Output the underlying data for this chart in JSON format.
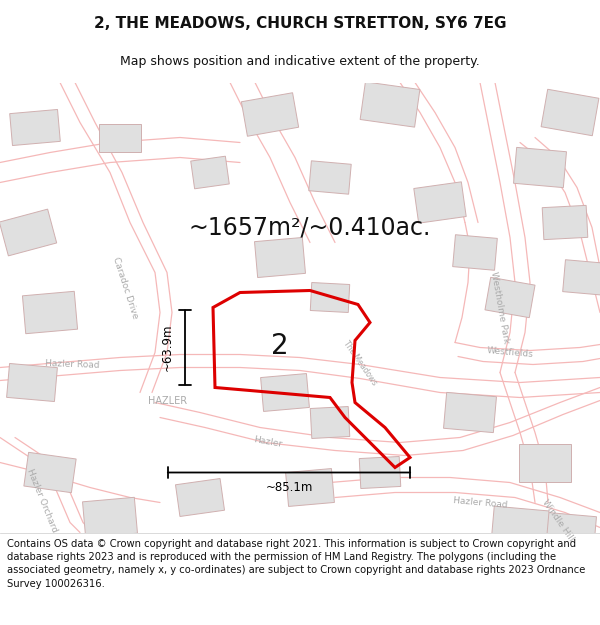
{
  "title": "2, THE MEADOWS, CHURCH STRETTON, SY6 7EG",
  "subtitle": "Map shows position and indicative extent of the property.",
  "area_text": "~1657m²/~0.410ac.",
  "property_label": "2",
  "dim_vertical": "~63.9m",
  "dim_horizontal": "~85.1m",
  "footer_text": "Contains OS data © Crown copyright and database right 2021. This information is subject to Crown copyright and database rights 2023 and is reproduced with the permission of HM Land Registry. The polygons (including the associated geometry, namely x, y co-ordinates) are subject to Crown copyright and database rights 2023 Ordnance Survey 100026316.",
  "bg_color": "#ffffff",
  "map_bg": "#fdf8f8",
  "map_line_color": "#f5b8b8",
  "property_color": "#dd0000",
  "text_color": "#111111",
  "dim_color": "#000000",
  "title_fontsize": 11,
  "subtitle_fontsize": 9,
  "area_fontsize": 17,
  "label_fontsize": 20,
  "footer_fontsize": 7.2,
  "road_label_color": "#aaaaaa",
  "building_face": "#e0e0e0",
  "building_edge": "#d0b0b0"
}
